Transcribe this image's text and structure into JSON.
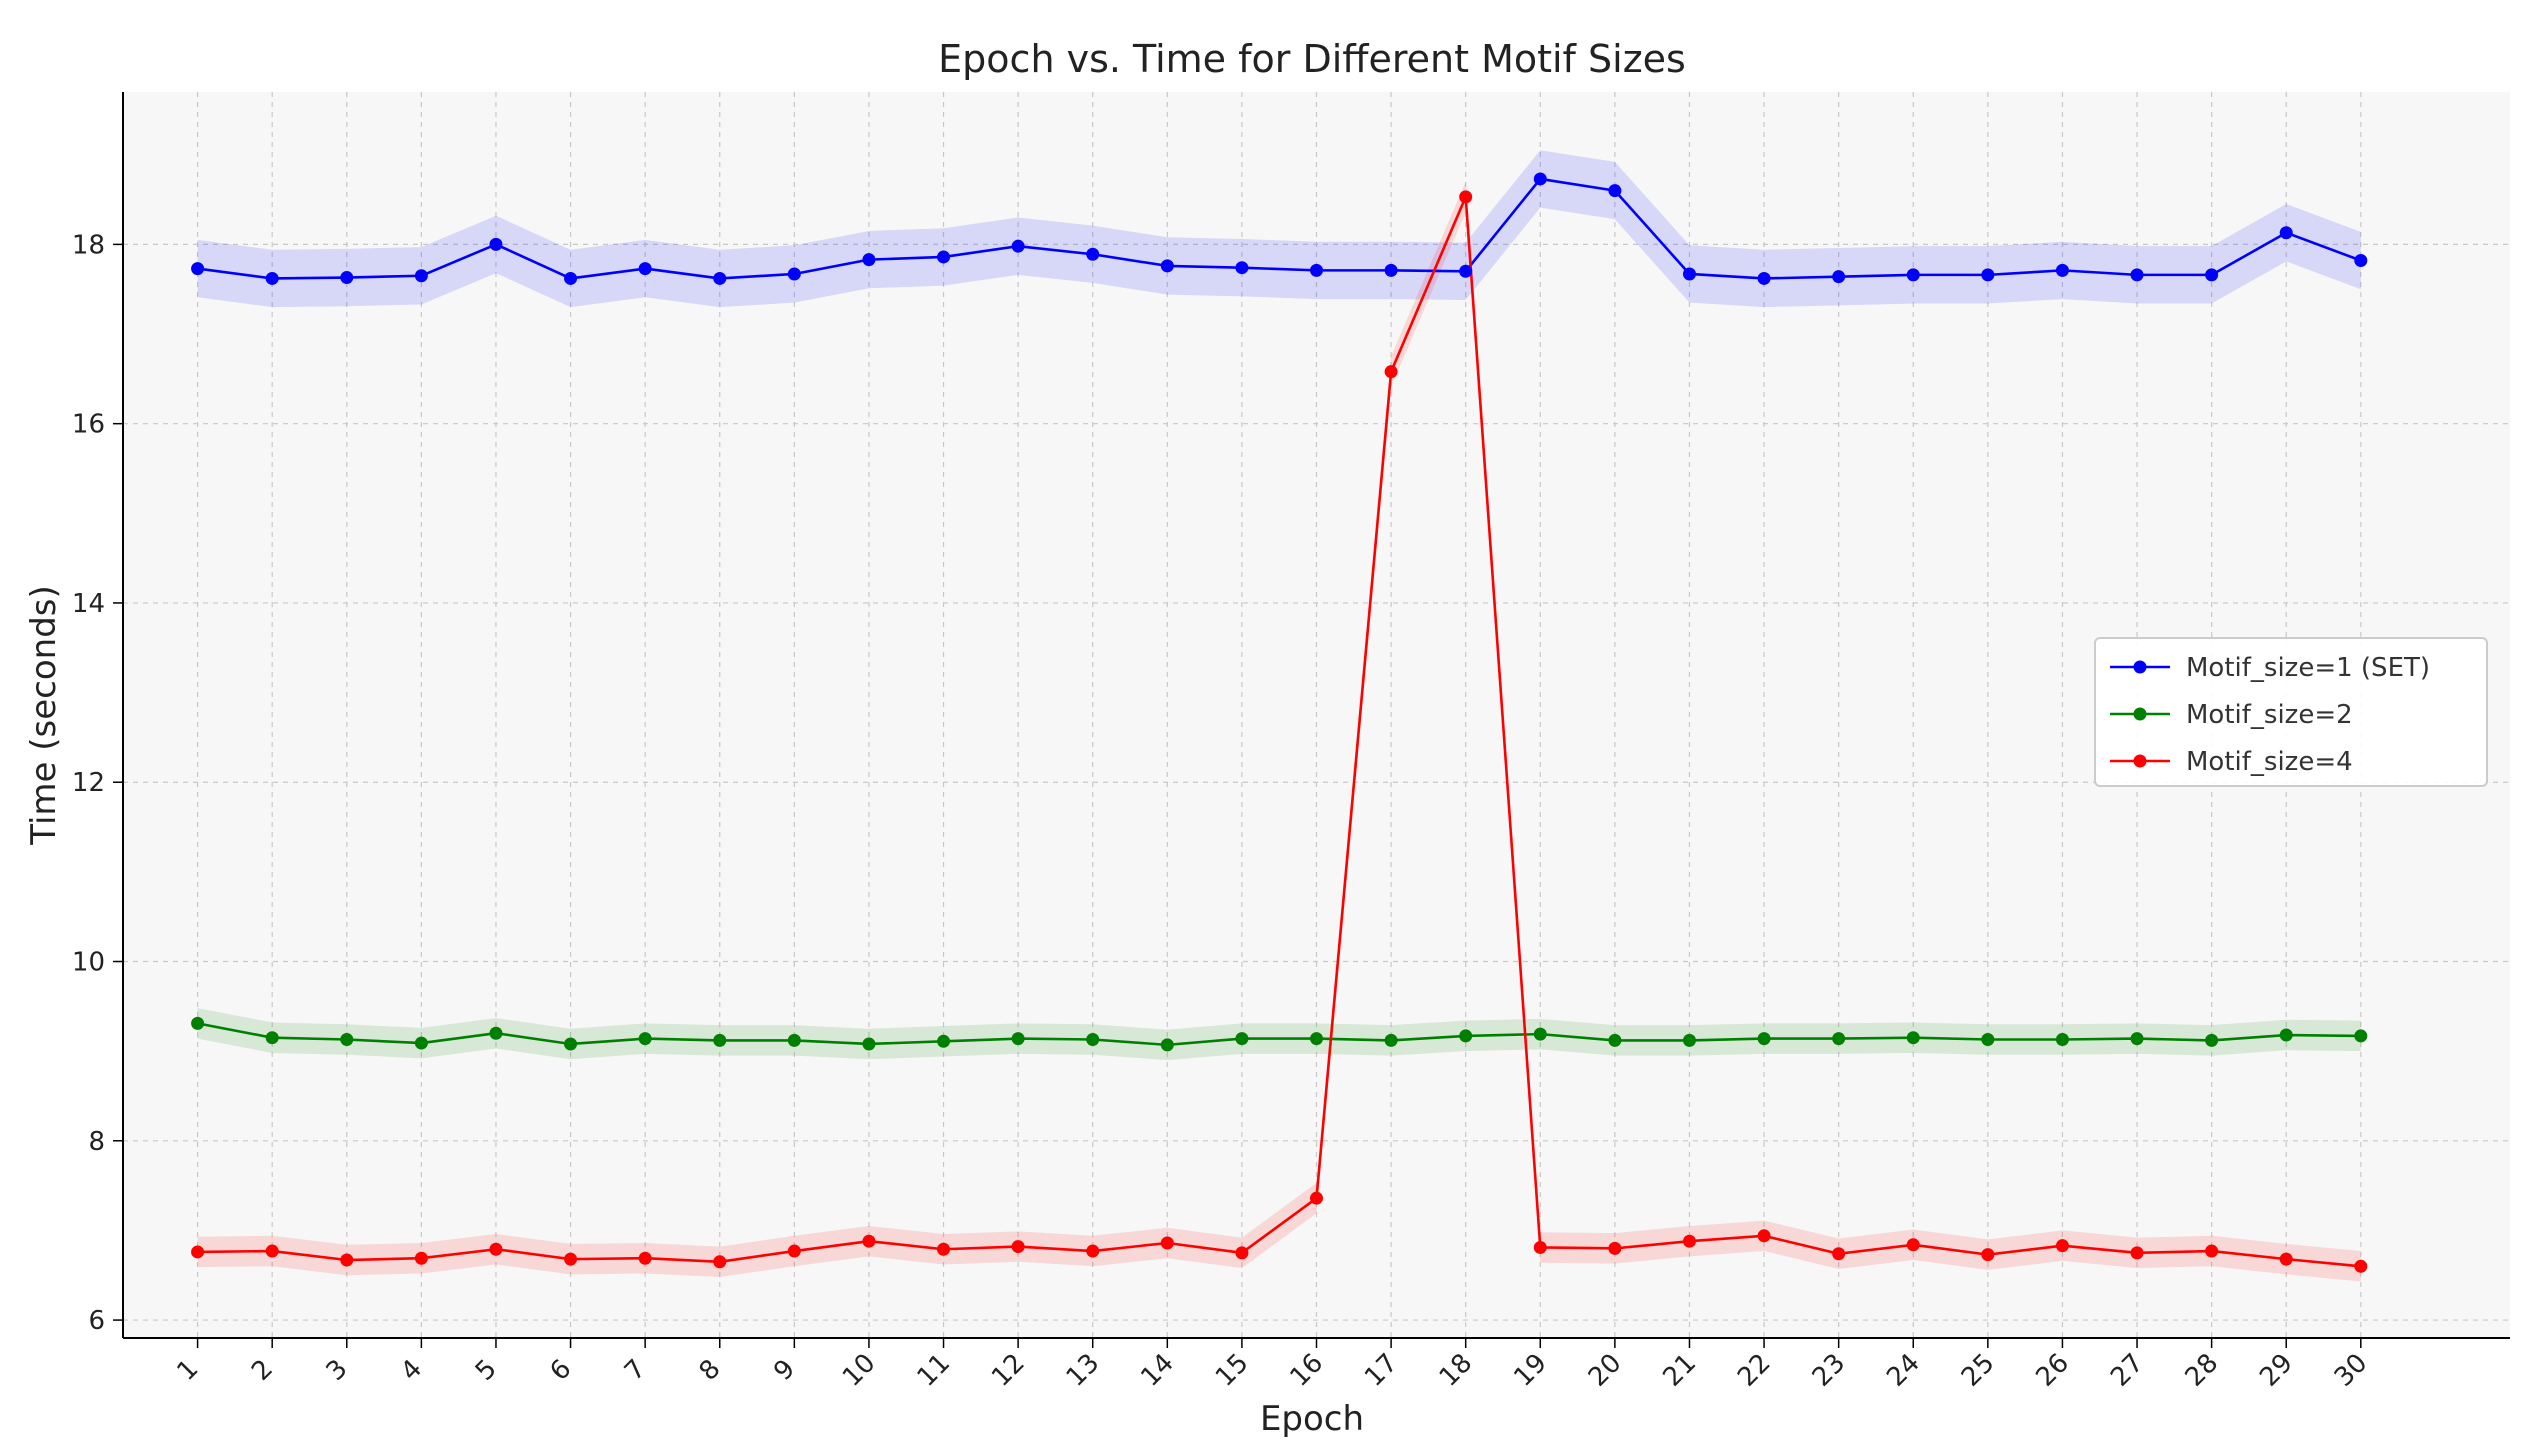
{
  "chart_data": {
    "type": "line",
    "title": "Epoch vs. Time for Different Motif Sizes",
    "xlabel": "Epoch",
    "ylabel": "Time (seconds)",
    "x": [
      1,
      2,
      3,
      4,
      5,
      6,
      7,
      8,
      9,
      10,
      11,
      12,
      13,
      14,
      15,
      16,
      17,
      18,
      19,
      20,
      21,
      22,
      23,
      24,
      25,
      26,
      27,
      28,
      29,
      30
    ],
    "xlim": [
      0.0,
      32.0
    ],
    "ylim": [
      5.8,
      19.7
    ],
    "yticks": [
      6,
      8,
      10,
      12,
      14,
      16,
      18
    ],
    "grid": true,
    "legend_position": "center-right",
    "series": [
      {
        "name": "Motif_size=1 (SET)",
        "color": "#0000ff",
        "band_halfwidth": 0.32,
        "values": [
          17.73,
          17.62,
          17.63,
          17.65,
          18.0,
          17.62,
          17.73,
          17.62,
          17.67,
          17.83,
          17.86,
          17.98,
          17.89,
          17.76,
          17.74,
          17.71,
          17.71,
          17.7,
          18.73,
          18.6,
          17.67,
          17.62,
          17.64,
          17.66,
          17.66,
          17.71,
          17.66,
          17.66,
          18.13,
          17.82
        ]
      },
      {
        "name": "Motif_size=2",
        "color": "#008000",
        "band_halfwidth": 0.17,
        "values": [
          9.31,
          9.15,
          9.13,
          9.09,
          9.2,
          9.08,
          9.14,
          9.12,
          9.12,
          9.08,
          9.11,
          9.14,
          9.13,
          9.07,
          9.14,
          9.14,
          9.12,
          9.17,
          9.19,
          9.12,
          9.12,
          9.14,
          9.14,
          9.15,
          9.13,
          9.13,
          9.14,
          9.12,
          9.18,
          9.17
        ]
      },
      {
        "name": "Motif_size=4",
        "color": "#ff0000",
        "band_halfwidth": 0.17,
        "values": [
          6.76,
          6.77,
          6.67,
          6.69,
          6.79,
          6.68,
          6.69,
          6.65,
          6.77,
          6.88,
          6.79,
          6.82,
          6.77,
          6.86,
          6.75,
          7.36,
          16.58,
          18.53,
          6.81,
          6.8,
          6.88,
          6.94,
          6.74,
          6.84,
          6.73,
          6.83,
          6.75,
          6.77,
          6.68,
          6.6
        ]
      }
    ]
  }
}
